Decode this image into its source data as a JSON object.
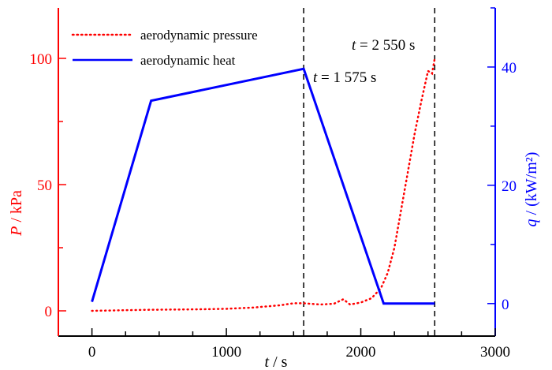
{
  "chart_data": {
    "type": "line",
    "xlabel_var": "t",
    "xlabel_unit": " / s",
    "ylabel_left_var": "P",
    "ylabel_left_unit": " / kPa",
    "ylabel_right_var": "q",
    "ylabel_right_unit": " / (kW/m²)",
    "xlim": [
      -250,
      3000
    ],
    "ylim_left": [
      -10,
      120
    ],
    "ylim_right": [
      -5.5,
      50
    ],
    "xticks": [
      0,
      1000,
      2000,
      3000
    ],
    "xtick_labels": [
      "0",
      "1000",
      "2000",
      "3000"
    ],
    "yticks_left": [
      0,
      50,
      100
    ],
    "ytick_left_labels": [
      "0",
      "50",
      "100"
    ],
    "yticks_right": [
      0,
      20,
      40
    ],
    "ytick_right_labels": [
      "0",
      "20",
      "40"
    ],
    "colors": {
      "pressure": "#ff0000",
      "heat": "#0000ff",
      "axis_left": "#ff0000",
      "axis_right": "#0000ff"
    },
    "series": [
      {
        "name": "aerodynamic pressure",
        "axis": "left",
        "style": "dotted",
        "x": [
          0,
          200,
          400,
          600,
          800,
          1000,
          1200,
          1400,
          1500,
          1575,
          1700,
          1800,
          1870,
          1920,
          2000,
          2080,
          2150,
          2200,
          2250,
          2300,
          2350,
          2400,
          2450,
          2500,
          2530,
          2550
        ],
        "y": [
          0,
          0.2,
          0.4,
          0.5,
          0.6,
          0.8,
          1.3,
          2.2,
          3,
          3,
          2.5,
          2.8,
          4.6,
          2.5,
          3.3,
          5,
          9,
          15,
          25,
          40,
          55,
          70,
          83,
          95,
          94,
          100
        ]
      },
      {
        "name": "aerodynamic heat",
        "axis": "right",
        "style": "solid",
        "x": [
          0,
          440,
          1575,
          2170,
          2550
        ],
        "y": [
          0.3,
          34.3,
          39.7,
          0,
          0
        ]
      }
    ],
    "vlines": [
      1575,
      2550
    ],
    "annotations": [
      {
        "var": "t",
        "text": " = 1 575 s"
      },
      {
        "var": "t",
        "text": " = 2 550 s"
      }
    ],
    "legend_position": "top-left"
  }
}
